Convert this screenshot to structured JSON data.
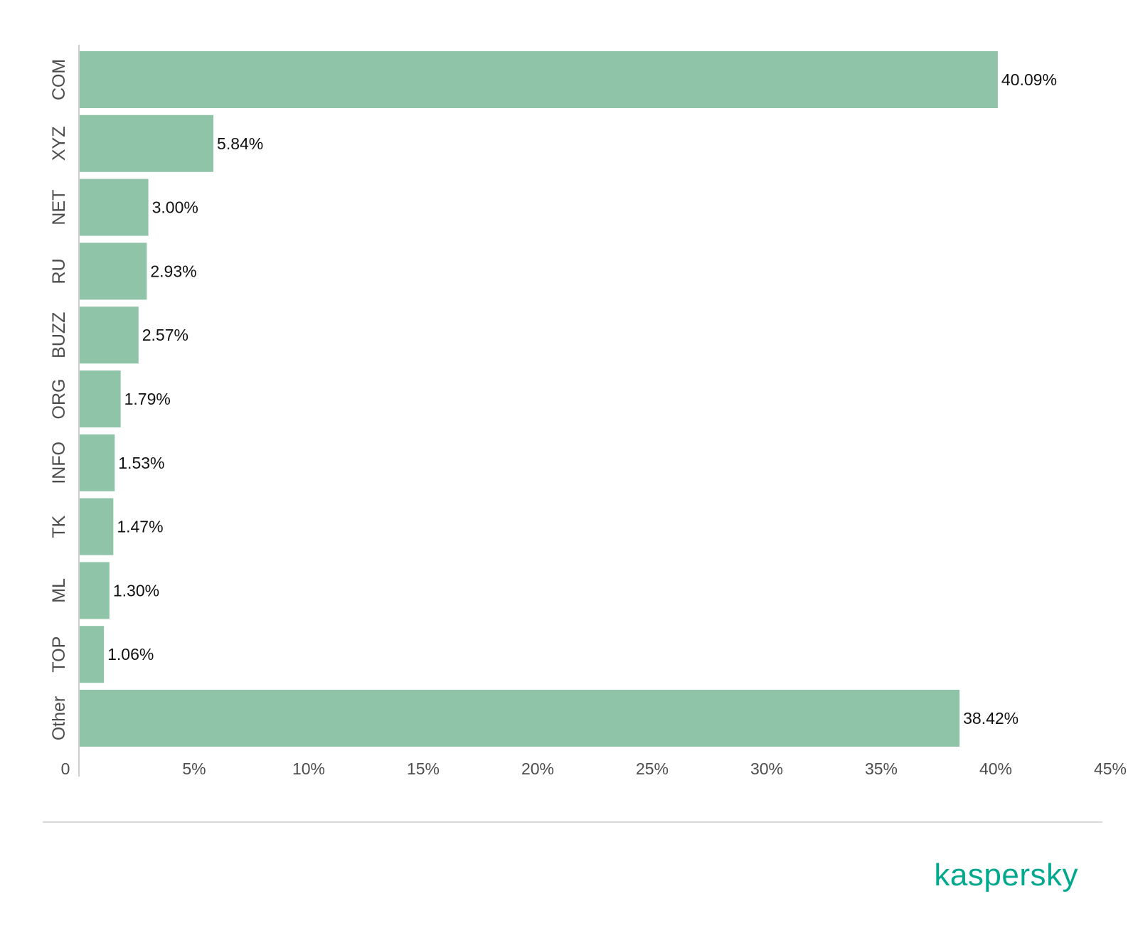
{
  "chart_data": {
    "type": "bar",
    "orientation": "horizontal",
    "categories": [
      "COM",
      "XYZ",
      "NET",
      "RU",
      "BUZZ",
      "ORG",
      "INFO",
      "TK",
      "ML",
      "TOP",
      "Other"
    ],
    "values": [
      40.09,
      5.84,
      3.0,
      2.93,
      2.57,
      1.79,
      1.53,
      1.47,
      1.3,
      1.06,
      38.42
    ],
    "value_labels": [
      "40.09%",
      "5.84%",
      "3.00%",
      "2.93%",
      "2.57%",
      "1.79%",
      "1.53%",
      "1.47%",
      "1.30%",
      "1.06%",
      "38.42%"
    ],
    "x_ticks": [
      {
        "value": 0,
        "label": "0"
      },
      {
        "value": 5,
        "label": "5%"
      },
      {
        "value": 10,
        "label": "10%"
      },
      {
        "value": 15,
        "label": "15%"
      },
      {
        "value": 20,
        "label": "20%"
      },
      {
        "value": 25,
        "label": "25%"
      },
      {
        "value": 30,
        "label": "30%"
      },
      {
        "value": 35,
        "label": "35%"
      },
      {
        "value": 40,
        "label": "40%"
      },
      {
        "value": 45,
        "label": "45%"
      }
    ],
    "xlim": [
      0,
      45
    ],
    "grid": false,
    "legend": "none",
    "bar_color": "#8fc4a8"
  },
  "brand": {
    "logo_text": "kaspersky",
    "color": "#00a88e"
  }
}
